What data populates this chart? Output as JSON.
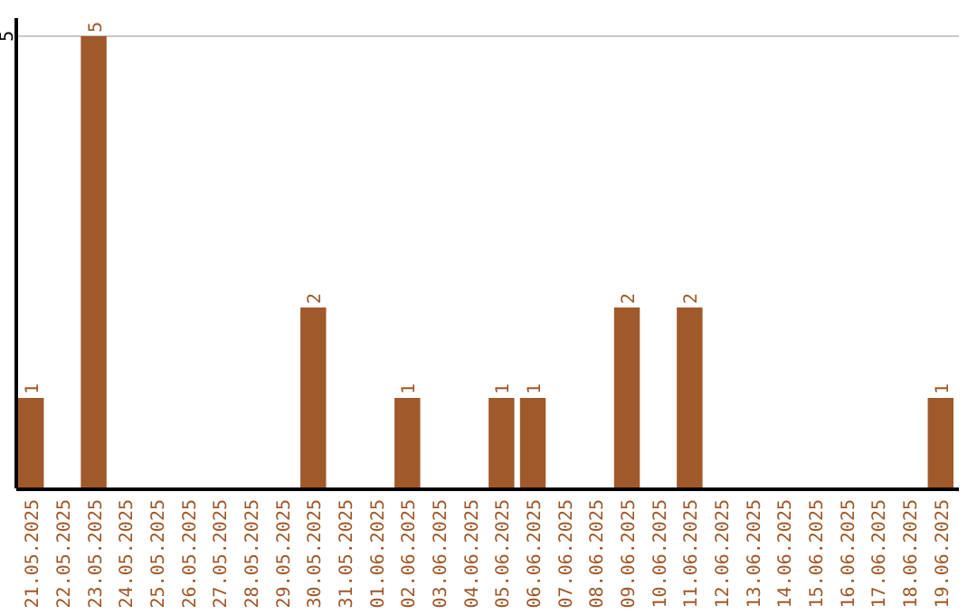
{
  "chart_data": {
    "type": "bar",
    "categories": [
      "21.05.2025",
      "22.05.2025",
      "23.05.2025",
      "24.05.2025",
      "25.05.2025",
      "26.05.2025",
      "27.05.2025",
      "28.05.2025",
      "29.05.2025",
      "30.05.2025",
      "31.05.2025",
      "01.06.2025",
      "02.06.2025",
      "03.06.2025",
      "04.06.2025",
      "05.06.2025",
      "06.06.2025",
      "07.06.2025",
      "08.06.2025",
      "09.06.2025",
      "10.06.2025",
      "11.06.2025",
      "12.06.2025",
      "13.06.2025",
      "14.06.2025",
      "15.06.2025",
      "16.06.2025",
      "17.06.2025",
      "18.06.2025",
      "19.06.2025"
    ],
    "values": [
      1,
      0,
      5,
      0,
      0,
      0,
      0,
      0,
      0,
      2,
      0,
      0,
      1,
      0,
      0,
      1,
      1,
      0,
      0,
      2,
      0,
      2,
      0,
      0,
      0,
      0,
      0,
      0,
      0,
      1
    ],
    "color": "#a0592a",
    "value_labels": [
      "1",
      null,
      "5",
      null,
      null,
      null,
      null,
      null,
      null,
      "2",
      null,
      null,
      "1",
      null,
      null,
      "1",
      "1",
      null,
      null,
      "2",
      null,
      "2",
      null,
      null,
      null,
      null,
      null,
      null,
      null,
      "1"
    ],
    "ylim": [
      0,
      5.2
    ],
    "yticks": [
      5
    ],
    "grid": "y"
  }
}
